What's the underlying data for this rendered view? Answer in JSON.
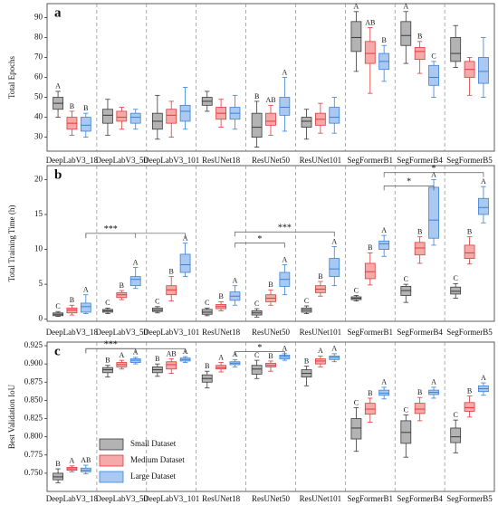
{
  "chart_data": [
    {
      "type": "box",
      "panel_label": "a",
      "ylabel": "Total Epochs",
      "categories": [
        "DeepLabV3_18",
        "DeepLabV3_50",
        "DeepLabV3_101",
        "ResUNet18",
        "ResUNet50",
        "ResUNet101",
        "SegFormerB1",
        "SegFormerB4",
        "SegFormerB5"
      ],
      "ylim": [
        23,
        97
      ],
      "yticks": [
        30,
        40,
        50,
        60,
        70,
        80,
        90
      ],
      "series": [
        {
          "color": "#b3b3b3",
          "edge_color": "#3a3a3a",
          "boxes": [
            {
              "min": 40,
              "q1": 44,
              "median": 47,
              "q3": 50,
              "max": 53
            },
            {
              "min": 31,
              "q1": 37,
              "median": 41,
              "q3": 44,
              "max": 49
            },
            {
              "min": 29,
              "q1": 34,
              "median": 38,
              "q3": 42,
              "max": 51
            },
            {
              "min": 43,
              "q1": 46,
              "median": 48,
              "q3": 50,
              "max": 53
            },
            {
              "min": 25,
              "q1": 30,
              "median": 35,
              "q3": 42,
              "max": 48
            },
            {
              "min": 29,
              "q1": 35,
              "median": 38,
              "q3": 40,
              "max": 44
            },
            {
              "min": 63,
              "q1": 73,
              "median": 80,
              "q3": 88,
              "max": 93
            },
            {
              "min": 67,
              "q1": 76,
              "median": 81,
              "q3": 88,
              "max": 93
            },
            {
              "min": 65,
              "q1": 68,
              "median": 72,
              "q3": 80,
              "max": 86
            }
          ],
          "letters": [
            "A",
            null,
            null,
            null,
            "B",
            null,
            "A",
            "A",
            null
          ]
        },
        {
          "color": "#f5a9a9",
          "edge_color": "#e03a3a",
          "boxes": [
            {
              "min": 31,
              "q1": 34,
              "median": 37,
              "q3": 40,
              "max": 43
            },
            {
              "min": 34,
              "q1": 38,
              "median": 40,
              "q3": 43,
              "max": 45
            },
            {
              "min": 30,
              "q1": 37,
              "median": 41,
              "q3": 44,
              "max": 48
            },
            {
              "min": 35,
              "q1": 39,
              "median": 42,
              "q3": 45,
              "max": 49
            },
            {
              "min": 31,
              "q1": 36,
              "median": 38,
              "q3": 42,
              "max": 46
            },
            {
              "min": 32,
              "q1": 36,
              "median": 39,
              "q3": 42,
              "max": 47
            },
            {
              "min": 52,
              "q1": 67,
              "median": 72,
              "q3": 78,
              "max": 85
            },
            {
              "min": 62,
              "q1": 69,
              "median": 73,
              "q3": 75,
              "max": 78
            },
            {
              "min": 51,
              "q1": 60,
              "median": 64,
              "q3": 68,
              "max": 70
            }
          ],
          "letters": [
            "B",
            null,
            null,
            null,
            "AB",
            null,
            "AB",
            "B",
            null
          ]
        },
        {
          "color": "#a9c9f2",
          "edge_color": "#3b80d6",
          "boxes": [
            {
              "min": 30,
              "q1": 33,
              "median": 36,
              "q3": 40,
              "max": 42
            },
            {
              "min": 34,
              "q1": 37,
              "median": 40,
              "q3": 42,
              "max": 44
            },
            {
              "min": 34,
              "q1": 38,
              "median": 43,
              "q3": 46,
              "max": 55
            },
            {
              "min": 34,
              "q1": 39,
              "median": 42,
              "q3": 45,
              "max": 51
            },
            {
              "min": 33,
              "q1": 41,
              "median": 45,
              "q3": 50,
              "max": 60
            },
            {
              "min": 32,
              "q1": 37,
              "median": 40,
              "q3": 45,
              "max": 50
            },
            {
              "min": 58,
              "q1": 64,
              "median": 68,
              "q3": 72,
              "max": 76
            },
            {
              "min": 50,
              "q1": 56,
              "median": 60,
              "q3": 66,
              "max": 68
            },
            {
              "min": 50,
              "q1": 57,
              "median": 63,
              "q3": 70,
              "max": 80
            }
          ],
          "letters": [
            "B",
            null,
            null,
            null,
            "A",
            null,
            "B",
            "C",
            null
          ]
        }
      ],
      "brackets": []
    },
    {
      "type": "box",
      "panel_label": "b",
      "ylabel": "Total Training Time (h)",
      "categories": [
        "DeepLabV3_18",
        "DeepLabV3_50",
        "DeepLabV3_101",
        "ResUNet18",
        "ResUNet50",
        "ResUNet101",
        "SegFormerB1",
        "SegFormerB4",
        "SegFormerB5"
      ],
      "ylim": [
        -0.3,
        22
      ],
      "yticks": [
        0,
        5,
        10,
        15,
        20
      ],
      "series": [
        {
          "color": "#b3b3b3",
          "edge_color": "#3a3a3a",
          "boxes": [
            {
              "min": 0.4,
              "q1": 0.5,
              "median": 0.7,
              "q3": 0.9,
              "max": 1.1
            },
            {
              "min": 0.8,
              "q1": 1.0,
              "median": 1.2,
              "q3": 1.4,
              "max": 1.6
            },
            {
              "min": 0.9,
              "q1": 1.1,
              "median": 1.3,
              "q3": 1.6,
              "max": 1.8
            },
            {
              "min": 0.5,
              "q1": 0.7,
              "median": 1.0,
              "q3": 1.4,
              "max": 1.6
            },
            {
              "min": 0.3,
              "q1": 0.6,
              "median": 0.9,
              "q3": 1.2,
              "max": 1.5
            },
            {
              "min": 0.8,
              "q1": 1.0,
              "median": 1.3,
              "q3": 1.6,
              "max": 1.9
            },
            {
              "min": 2.6,
              "q1": 2.8,
              "median": 3.0,
              "q3": 3.2,
              "max": 3.4
            },
            {
              "min": 2.4,
              "q1": 3.4,
              "median": 4.1,
              "q3": 4.7,
              "max": 5.0
            },
            {
              "min": 3.0,
              "q1": 3.6,
              "median": 4.0,
              "q3": 4.6,
              "max": 5.1
            }
          ],
          "letters": [
            "C",
            "C",
            "C",
            "C",
            "C",
            "C",
            "C",
            "C",
            "C"
          ]
        },
        {
          "color": "#f5a9a9",
          "edge_color": "#e03a3a",
          "boxes": [
            {
              "min": 0.6,
              "q1": 0.9,
              "median": 1.3,
              "q3": 1.6,
              "max": 2.0
            },
            {
              "min": 2.8,
              "q1": 3.1,
              "median": 3.5,
              "q3": 3.8,
              "max": 4.1
            },
            {
              "min": 2.6,
              "q1": 3.5,
              "median": 4.2,
              "q3": 4.8,
              "max": 6.1
            },
            {
              "min": 1.2,
              "q1": 1.5,
              "median": 1.8,
              "q3": 2.1,
              "max": 2.5
            },
            {
              "min": 2.0,
              "q1": 2.5,
              "median": 3.0,
              "q3": 3.5,
              "max": 4.2
            },
            {
              "min": 3.3,
              "q1": 3.8,
              "median": 4.3,
              "q3": 4.8,
              "max": 5.4
            },
            {
              "min": 4.9,
              "q1": 5.8,
              "median": 6.8,
              "q3": 8.0,
              "max": 9.5
            },
            {
              "min": 8.0,
              "q1": 9.2,
              "median": 10.2,
              "q3": 11.0,
              "max": 11.8
            },
            {
              "min": 7.9,
              "q1": 8.7,
              "median": 9.5,
              "q3": 10.6,
              "max": 11.8
            }
          ],
          "letters": [
            "B",
            "B",
            "B",
            "B",
            "B",
            "B",
            "B",
            "B",
            "B"
          ]
        },
        {
          "color": "#a9c9f2",
          "edge_color": "#3b80d6",
          "boxes": [
            {
              "min": 0.8,
              "q1": 1.0,
              "median": 1.8,
              "q3": 2.3,
              "max": 3.5
            },
            {
              "min": 4.4,
              "q1": 4.8,
              "median": 5.7,
              "q3": 6.1,
              "max": 7.4
            },
            {
              "min": 6.1,
              "q1": 6.7,
              "median": 7.8,
              "q3": 9.3,
              "max": 10.9
            },
            {
              "min": 2.0,
              "q1": 2.7,
              "median": 3.3,
              "q3": 3.9,
              "max": 4.8
            },
            {
              "min": 3.5,
              "q1": 4.7,
              "median": 5.7,
              "q3": 6.7,
              "max": 7.8
            },
            {
              "min": 4.8,
              "q1": 6.1,
              "median": 7.2,
              "q3": 8.7,
              "max": 10.4
            },
            {
              "min": 9.0,
              "q1": 10.0,
              "median": 10.8,
              "q3": 11.2,
              "max": 12.0
            },
            {
              "min": 10.6,
              "q1": 11.6,
              "median": 14.2,
              "q3": 18.9,
              "max": 20.0
            },
            {
              "min": 13.8,
              "q1": 15.0,
              "median": 16.0,
              "q3": 17.3,
              "max": 19.0
            }
          ],
          "letters": [
            "A",
            "A",
            "A",
            "A",
            "A",
            "A",
            "A",
            "A",
            "A"
          ]
        }
      ],
      "brackets": [
        {
          "from": 0,
          "to": 2,
          "y": 12.3
        },
        {
          "from": 0,
          "to": 1,
          "y": 12.3,
          "label": "***"
        },
        {
          "from": 3,
          "to": 5,
          "y": 12.5,
          "label": "***"
        },
        {
          "from": 3,
          "to": 4,
          "y": 10.9,
          "label": "*"
        },
        {
          "from": 6,
          "to": 8,
          "y": 21.0,
          "label": "*"
        },
        {
          "from": 6,
          "to": 7,
          "y": 19.1,
          "label": "*"
        }
      ]
    },
    {
      "type": "box",
      "panel_label": "c",
      "ylabel": "Best Validation IoU",
      "categories": [
        "DeepLabV3_18",
        "DeepLabV3_50",
        "DeepLabV3_101",
        "ResUNet18",
        "ResUNet50",
        "ResUNet101",
        "SegFormerB1",
        "SegFormerB4",
        "SegFormerB5"
      ],
      "ylim": [
        0.725,
        0.93
      ],
      "yticks": [
        {
          "value": 0.75,
          "label": "0.750"
        },
        {
          "value": 0.775,
          "label": "0.775"
        },
        {
          "value": 0.8,
          "label": "0.800"
        },
        {
          "value": 0.825,
          "label": "0.825"
        },
        {
          "value": 0.85,
          "label": "0.850"
        },
        {
          "value": 0.875,
          "label": "0.875"
        },
        {
          "value": 0.9,
          "label": "0.900"
        },
        {
          "value": 0.925,
          "label": "0.925"
        }
      ],
      "legend": "lower left",
      "series": [
        {
          "name": "Small Dataset",
          "color": "#b3b3b3",
          "edge_color": "#3a3a3a",
          "boxes": [
            {
              "min": 0.737,
              "q1": 0.741,
              "median": 0.745,
              "q3": 0.75,
              "max": 0.756
            },
            {
              "min": 0.882,
              "q1": 0.888,
              "median": 0.892,
              "q3": 0.895,
              "max": 0.898
            },
            {
              "min": 0.883,
              "q1": 0.888,
              "median": 0.892,
              "q3": 0.896,
              "max": 0.9
            },
            {
              "min": 0.867,
              "q1": 0.875,
              "median": 0.88,
              "q3": 0.885,
              "max": 0.89
            },
            {
              "min": 0.88,
              "q1": 0.886,
              "median": 0.893,
              "q3": 0.898,
              "max": 0.905
            },
            {
              "min": 0.87,
              "q1": 0.882,
              "median": 0.887,
              "q3": 0.892,
              "max": 0.897
            },
            {
              "min": 0.78,
              "q1": 0.797,
              "median": 0.812,
              "q3": 0.825,
              "max": 0.84
            },
            {
              "min": 0.772,
              "q1": 0.791,
              "median": 0.806,
              "q3": 0.822,
              "max": 0.83
            },
            {
              "min": 0.778,
              "q1": 0.792,
              "median": 0.8,
              "q3": 0.812,
              "max": 0.823
            }
          ],
          "letters": [
            "B",
            "B",
            "B",
            "B",
            "C",
            "B",
            "C",
            "C",
            "C"
          ]
        },
        {
          "name": "Medium Dataset",
          "color": "#f5a9a9",
          "edge_color": "#e03a3a",
          "boxes": [
            {
              "min": 0.752,
              "q1": 0.754,
              "median": 0.756,
              "q3": 0.758,
              "max": 0.76
            },
            {
              "min": 0.893,
              "q1": 0.896,
              "median": 0.899,
              "q3": 0.902,
              "max": 0.905
            },
            {
              "min": 0.887,
              "q1": 0.893,
              "median": 0.899,
              "q3": 0.903,
              "max": 0.907
            },
            {
              "min": 0.889,
              "q1": 0.893,
              "median": 0.895,
              "q3": 0.898,
              "max": 0.902
            },
            {
              "min": 0.89,
              "q1": 0.896,
              "median": 0.898,
              "q3": 0.901,
              "max": 0.904
            },
            {
              "min": 0.896,
              "q1": 0.9,
              "median": 0.904,
              "q3": 0.907,
              "max": 0.911
            },
            {
              "min": 0.82,
              "q1": 0.831,
              "median": 0.838,
              "q3": 0.846,
              "max": 0.853
            },
            {
              "min": 0.822,
              "q1": 0.832,
              "median": 0.838,
              "q3": 0.846,
              "max": 0.854
            },
            {
              "min": 0.827,
              "q1": 0.835,
              "median": 0.84,
              "q3": 0.847,
              "max": 0.856
            }
          ],
          "letters": [
            "A",
            "A",
            "AB",
            "A",
            "B",
            "A",
            "B",
            "B",
            "B"
          ]
        },
        {
          "name": "Large Dataset",
          "color": "#a9c9f2",
          "edge_color": "#3b80d6",
          "boxes": [
            {
              "min": 0.749,
              "q1": 0.752,
              "median": 0.754,
              "q3": 0.757,
              "max": 0.761
            },
            {
              "min": 0.9,
              "q1": 0.902,
              "median": 0.905,
              "q3": 0.907,
              "max": 0.909
            },
            {
              "min": 0.902,
              "q1": 0.904,
              "median": 0.906,
              "q3": 0.908,
              "max": 0.91
            },
            {
              "min": 0.896,
              "q1": 0.899,
              "median": 0.901,
              "q3": 0.903,
              "max": 0.906
            },
            {
              "min": 0.905,
              "q1": 0.907,
              "median": 0.91,
              "q3": 0.912,
              "max": 0.914
            },
            {
              "min": 0.903,
              "q1": 0.906,
              "median": 0.909,
              "q3": 0.911,
              "max": 0.914
            },
            {
              "min": 0.852,
              "q1": 0.857,
              "median": 0.86,
              "q3": 0.864,
              "max": 0.868
            },
            {
              "min": 0.853,
              "q1": 0.858,
              "median": 0.861,
              "q3": 0.864,
              "max": 0.868
            },
            {
              "min": 0.857,
              "q1": 0.862,
              "median": 0.866,
              "q3": 0.87,
              "max": 0.874
            }
          ],
          "letters": [
            "AB",
            "A",
            "A",
            "A",
            "A",
            "A",
            "A",
            "A",
            "A"
          ]
        }
      ],
      "brackets": [
        {
          "from": 0,
          "to": 2,
          "y": 0.921
        },
        {
          "from": 0,
          "to": 1,
          "y": 0.921,
          "label": "***"
        },
        {
          "from": 3,
          "to": 4,
          "y": 0.917,
          "label": "*"
        }
      ]
    }
  ]
}
